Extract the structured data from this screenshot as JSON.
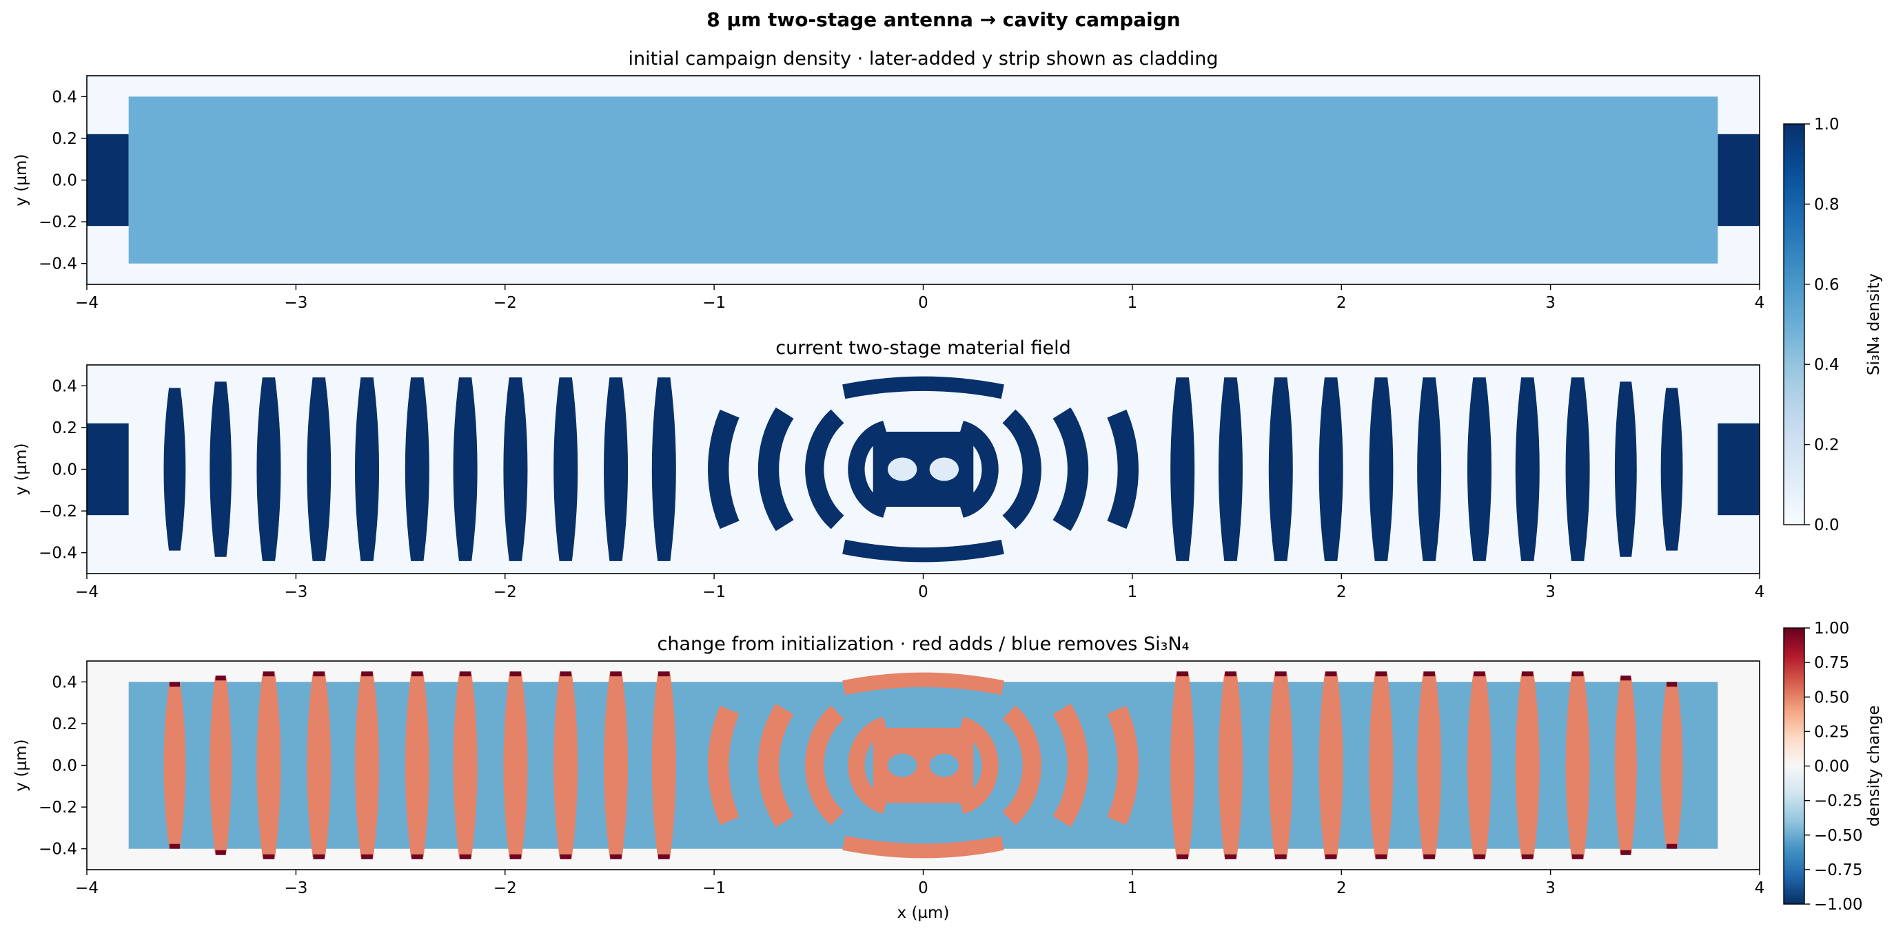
{
  "figure": {
    "suptitle": "8 µm two-stage antenna → cavity campaign"
  },
  "chart_data": [
    {
      "type": "heatmap",
      "title": "initial campaign density · later-added y strip shown as cladding",
      "xlabel": "",
      "ylabel": "y (µm)",
      "xlim": [
        -4,
        4
      ],
      "ylim": [
        -0.5,
        0.5
      ],
      "x_ticks": [
        "−4",
        "−3",
        "−2",
        "−1",
        "0",
        "1",
        "2",
        "3",
        "4"
      ],
      "y_ticks": [
        "0.4",
        "0.2",
        "0.0",
        "−0.2",
        "−0.4"
      ],
      "colormap": "Blues",
      "value_range": [
        0,
        1
      ],
      "background_value": 0.02,
      "regions": [
        {
          "name": "left waveguide",
          "x": [
            -4.0,
            -3.8
          ],
          "y": [
            -0.22,
            0.22
          ],
          "value": 1.0
        },
        {
          "name": "right waveguide",
          "x": [
            3.8,
            4.0
          ],
          "y": [
            -0.22,
            0.22
          ],
          "value": 1.0
        },
        {
          "name": "design region",
          "x": [
            -3.8,
            3.8
          ],
          "y": [
            -0.4,
            0.4
          ],
          "value": 0.5
        }
      ],
      "colorbar": {
        "label": "Si₃N₄ density",
        "ticks": [
          "1.0",
          "0.8",
          "0.6",
          "0.4",
          "0.2",
          "0.0"
        ],
        "range": [
          0,
          1
        ],
        "colormap": "Blues"
      }
    },
    {
      "type": "heatmap",
      "title": "current two-stage material field",
      "xlabel": "",
      "ylabel": "y (µm)",
      "xlim": [
        -4,
        4
      ],
      "ylim": [
        -0.5,
        0.5
      ],
      "x_ticks": [
        "−4",
        "−3",
        "−2",
        "−1",
        "0",
        "1",
        "2",
        "3",
        "4"
      ],
      "y_ticks": [
        "0.4",
        "0.2",
        "0.0",
        "−0.2",
        "−0.4"
      ],
      "colormap": "Blues",
      "value_range": [
        0,
        1
      ],
      "background_value": 0.02,
      "waveguides": [
        {
          "x": [
            -4.0,
            -3.8
          ],
          "y": [
            -0.22,
            0.22
          ],
          "value": 1.0
        },
        {
          "x": [
            3.8,
            4.0
          ],
          "y": [
            -0.22,
            0.22
          ],
          "value": 1.0
        }
      ],
      "bars": [
        {
          "x": -3.58,
          "w": 0.1,
          "h": 0.39
        },
        {
          "x": -3.36,
          "w": 0.1,
          "h": 0.42
        },
        {
          "x": -3.13,
          "w": 0.11,
          "h": 0.44
        },
        {
          "x": -2.89,
          "w": 0.11,
          "h": 0.44
        },
        {
          "x": -2.66,
          "w": 0.11,
          "h": 0.44
        },
        {
          "x": -2.42,
          "w": 0.11,
          "h": 0.44
        },
        {
          "x": -2.19,
          "w": 0.11,
          "h": 0.44
        },
        {
          "x": -1.95,
          "w": 0.11,
          "h": 0.44
        },
        {
          "x": -1.71,
          "w": 0.11,
          "h": 0.44
        },
        {
          "x": -1.47,
          "w": 0.11,
          "h": 0.44
        },
        {
          "x": -1.24,
          "w": 0.11,
          "h": 0.44
        },
        {
          "x": 1.24,
          "w": 0.11,
          "h": 0.44
        },
        {
          "x": 1.47,
          "w": 0.11,
          "h": 0.44
        },
        {
          "x": 1.71,
          "w": 0.11,
          "h": 0.44
        },
        {
          "x": 1.95,
          "w": 0.11,
          "h": 0.44
        },
        {
          "x": 2.19,
          "w": 0.11,
          "h": 0.44
        },
        {
          "x": 2.42,
          "w": 0.11,
          "h": 0.44
        },
        {
          "x": 2.66,
          "w": 0.11,
          "h": 0.44
        },
        {
          "x": 2.89,
          "w": 0.11,
          "h": 0.44
        },
        {
          "x": 3.13,
          "w": 0.11,
          "h": 0.44
        },
        {
          "x": 3.36,
          "w": 0.1,
          "h": 0.42
        },
        {
          "x": 3.58,
          "w": 0.1,
          "h": 0.39
        }
      ],
      "rings": [
        {
          "r": 0.98,
          "w": 0.1,
          "half_angle_deg": 26
        },
        {
          "r": 0.74,
          "w": 0.1,
          "half_angle_deg": 36
        },
        {
          "r": 0.52,
          "w": 0.09,
          "half_angle_deg": 52
        },
        {
          "r": 0.32,
          "w": 0.08,
          "half_angle_deg": 78
        }
      ],
      "core": {
        "x": [
          -0.24,
          0.24
        ],
        "y": [
          -0.18,
          0.18
        ],
        "value": 1.0
      },
      "core_holes": [
        {
          "x": -0.1,
          "y": 0.0,
          "r": 0.07
        },
        {
          "x": 0.1,
          "y": 0.0,
          "r": 0.07
        }
      ]
    },
    {
      "type": "heatmap",
      "title": "change from initialization · red adds / blue removes Si₃N₄",
      "xlabel": "x (µm)",
      "ylabel": "y (µm)",
      "xlim": [
        -4,
        4
      ],
      "ylim": [
        -0.5,
        0.5
      ],
      "x_ticks": [
        "−4",
        "−3",
        "−2",
        "−1",
        "0",
        "1",
        "2",
        "3",
        "4"
      ],
      "y_ticks": [
        "0.4",
        "0.2",
        "0.0",
        "−0.2",
        "−0.4"
      ],
      "colormap": "RdBu_r",
      "value_range": [
        -1,
        1
      ],
      "background_value": 0.0,
      "design_region": {
        "x": [
          -3.8,
          3.8
        ],
        "y": [
          -0.4,
          0.4
        ],
        "removed_value": -0.5,
        "added_value": 0.5,
        "tip_value": 0.98
      },
      "colorbar": {
        "label": "density change",
        "ticks": [
          "1.00",
          "0.75",
          "0.50",
          "0.25",
          "0.00",
          "−0.25",
          "−0.50",
          "−0.75",
          "−1.00"
        ],
        "range": [
          -1,
          1
        ],
        "colormap": "RdBu_r"
      }
    }
  ]
}
